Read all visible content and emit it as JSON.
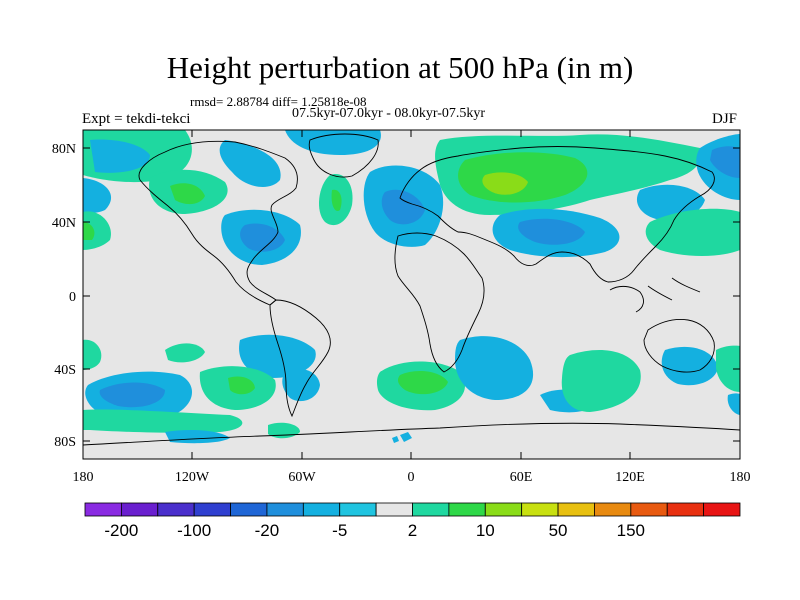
{
  "title": "Height perturbation at 500 hPa (in m)",
  "stats": "rmsd= 2.88784 diff= 1.25818e-08",
  "period": "07.5kyr-07.0kyr - 08.0kyr-07.5kyr",
  "experiment": "Expt = tekdi-tekci",
  "season": "DJF",
  "map": {
    "lat_ticks": [
      "80N",
      "40N",
      "0",
      "40S",
      "80S"
    ],
    "lon_ticks": [
      "180",
      "120W",
      "60W",
      "0",
      "60E",
      "120E",
      "180"
    ],
    "background_color": "#e6e6e6",
    "coastline_color": "#000000"
  },
  "colorbar": {
    "colors": [
      "#8a2be2",
      "#6a1fcf",
      "#4a2fcc",
      "#2f3fd0",
      "#1f66d6",
      "#1f8fdc",
      "#14b0e0",
      "#20c4e0",
      "#e6e6e6",
      "#1fd8a0",
      "#2ed848",
      "#8adc18",
      "#c8e010",
      "#e8c010",
      "#e88a10",
      "#e85a10",
      "#e83010",
      "#e81414"
    ],
    "labels": [
      "-200",
      "-100",
      "-20",
      "-5",
      "2",
      "10",
      "50",
      "150"
    ]
  }
}
